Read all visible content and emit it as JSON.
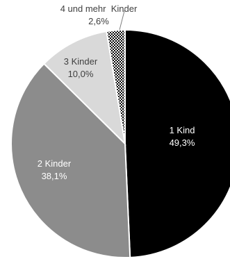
{
  "chart_data": {
    "type": "pie",
    "title": "",
    "slices": [
      {
        "label": "1 Kind",
        "value_text": "49,3%",
        "value": 49.3,
        "color": "#000000",
        "label_color": "#ffffff"
      },
      {
        "label": "2 Kinder",
        "value_text": "38,1%",
        "value": 38.1,
        "color": "#8c8c8c",
        "label_color": "#ffffff"
      },
      {
        "label": "3 Kinder",
        "value_text": "10,0%",
        "value": 10.0,
        "color": "#d9d9d9",
        "label_color": "#404040"
      },
      {
        "label": "4 und mehr  Kinder",
        "value_text": "2,6%",
        "value": 2.6,
        "color": "checkered",
        "label_color": "#404040"
      }
    ],
    "start_direction": "top",
    "order": "clockwise",
    "legend": "none"
  }
}
